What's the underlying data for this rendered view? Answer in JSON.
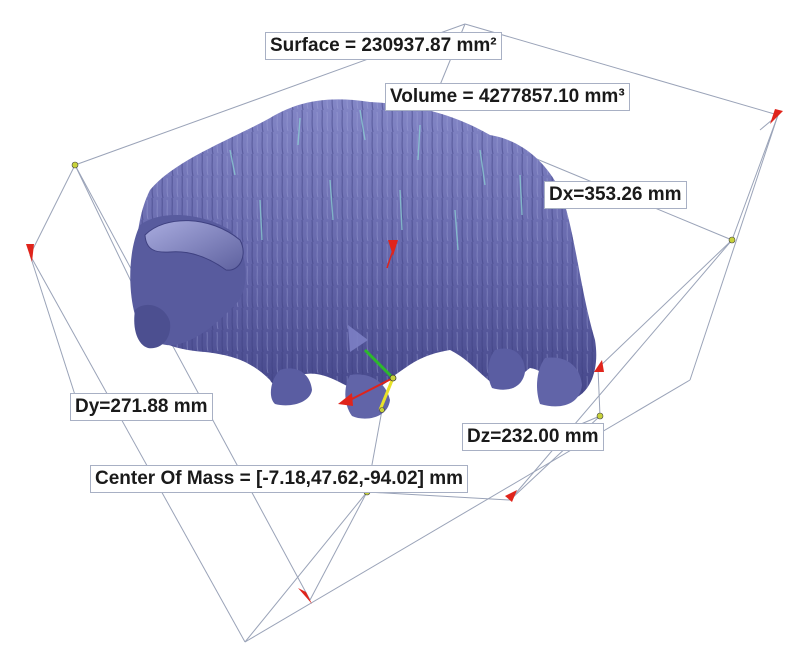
{
  "measurements": {
    "surface": "Surface = 230937.87  mm²",
    "volume": "Volume = 4277857.10 mm³",
    "dx": "Dx=353.26 mm",
    "dy": "Dy=271.88 mm",
    "dz": "Dz=232.00 mm",
    "center_of_mass": "Center Of Mass = [-7.18,47.62,-94.02] mm"
  },
  "colors": {
    "model": "#6c6fb0",
    "model_shade": "#4a4c8c",
    "model_highlight": "#9ea2d8",
    "fur_accent": "#8fd6d6",
    "dimension_line": "#9aa3b8",
    "arrow": "#e0241b",
    "node": "#c8d23a",
    "axis_x": "#e0241b",
    "axis_y": "#2db82d",
    "axis_z": "#e8e22a"
  },
  "icons": {
    "model": "musk-ox-3d-mesh",
    "center_of_mass_marker": "triad-axis-icon",
    "dimension_arrows": "arrowhead-icon"
  }
}
